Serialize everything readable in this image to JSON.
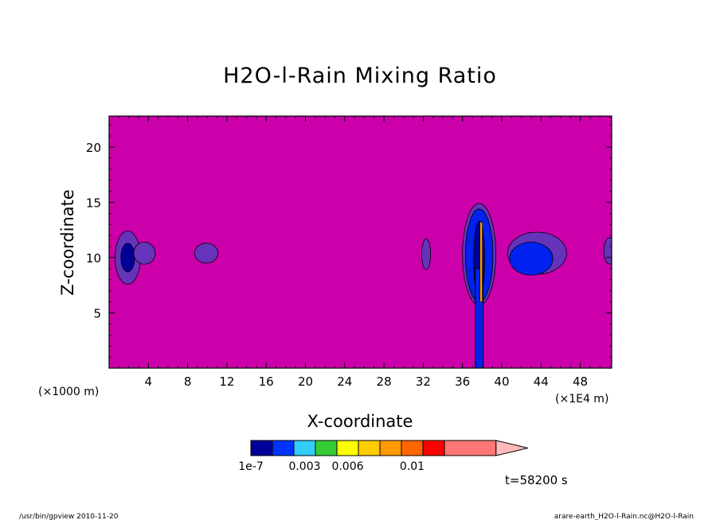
{
  "chart_data": {
    "type": "heatmap",
    "title": "H2O-l-Rain Mixing Ratio",
    "xlabel": "X-coordinate",
    "ylabel": "Z-coordinate",
    "x_unit_left": "(×1000 m)",
    "x_unit_right": "(×1E4 m)",
    "x_ticks": [
      4,
      8,
      12,
      16,
      20,
      24,
      28,
      32,
      36,
      40,
      44,
      48
    ],
    "y_ticks": [
      5,
      10,
      15,
      20
    ],
    "xlim": [
      0,
      51.2
    ],
    "ylim": [
      0,
      22.8
    ],
    "background_color": "#cc00aa",
    "features": [
      {
        "kind": "blob",
        "cx": 1.9,
        "cy": 10.0,
        "rx": 1.3,
        "ry": 2.4,
        "level": "purple"
      },
      {
        "kind": "blob",
        "cx": 1.9,
        "cy": 10.0,
        "rx": 0.7,
        "ry": 1.3,
        "level": "navy"
      },
      {
        "kind": "blob",
        "cx": 3.6,
        "cy": 10.4,
        "rx": 1.1,
        "ry": 1.0,
        "level": "purple"
      },
      {
        "kind": "blob",
        "cx": 9.9,
        "cy": 10.4,
        "rx": 1.2,
        "ry": 0.9,
        "level": "purple"
      },
      {
        "kind": "blob",
        "cx": 32.3,
        "cy": 10.3,
        "rx": 0.45,
        "ry": 1.4,
        "level": "purple"
      },
      {
        "kind": "blob",
        "cx": 37.7,
        "cy": 10.3,
        "rx": 1.7,
        "ry": 4.6,
        "level": "purple"
      },
      {
        "kind": "blob",
        "cx": 37.7,
        "cy": 10.2,
        "rx": 1.4,
        "ry": 4.2,
        "level": "blue"
      },
      {
        "kind": "blob",
        "cx": 37.7,
        "cy": 9.8,
        "rx": 0.55,
        "ry": 3.5,
        "level": "navy"
      },
      {
        "kind": "blob",
        "cx": 43.6,
        "cy": 10.4,
        "rx": 3.0,
        "ry": 1.9,
        "level": "purple"
      },
      {
        "kind": "blob",
        "cx": 43.0,
        "cy": 9.9,
        "rx": 2.2,
        "ry": 1.5,
        "level": "blue"
      },
      {
        "kind": "blob",
        "cx": 51.0,
        "cy": 10.6,
        "rx": 0.6,
        "ry": 1.2,
        "level": "purple"
      },
      {
        "kind": "column",
        "x": 37.7,
        "y0": 0,
        "y1": 9,
        "level": "blue"
      },
      {
        "kind": "core",
        "x": 37.9,
        "y0": 6.0,
        "y1": 13.2,
        "level": "orange"
      }
    ],
    "colorbar": {
      "colors": [
        "#000099",
        "#0033ff",
        "#33ccff",
        "#33cc33",
        "#ffff00",
        "#ffcc00",
        "#ff9900",
        "#ff6600",
        "#ff0000",
        "#ff7777"
      ],
      "extend_color": "#ffbbbb",
      "labels": [
        "1e-7",
        "0.003",
        "0.006",
        "0.01"
      ],
      "label_positions": [
        0,
        2,
        4,
        7
      ]
    },
    "level_colors": {
      "purple": "#6633bb",
      "navy": "#000099",
      "blue": "#0022ee",
      "orange": "#ff9900"
    },
    "time_label": "t=58200 s"
  },
  "footer": {
    "left": "/usr/bin/gpview   2010-11-20",
    "right": "arare-earth_H2O-l-Rain.nc@H2O-l-Rain"
  }
}
